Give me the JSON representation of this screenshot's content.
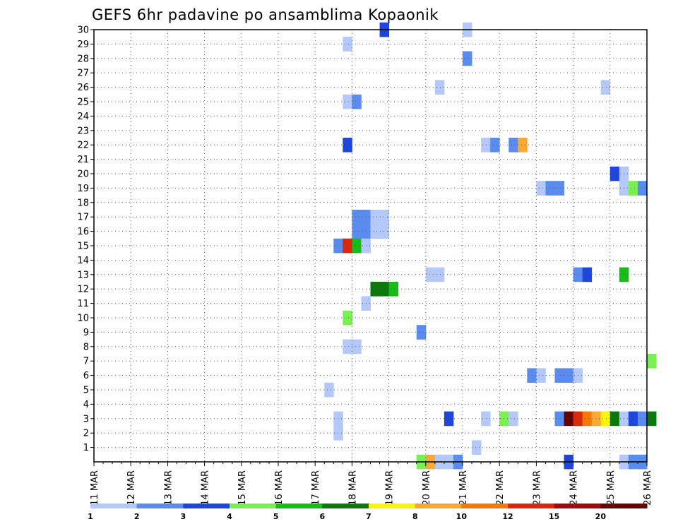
{
  "chart_data": {
    "type": "heatmap",
    "title": "GEFS 6hr padavine po ansamblima Kopaonik",
    "x_tick_labels": [
      "11 MAR",
      "12 MAR",
      "13 MAR",
      "14 MAR",
      "15 MAR",
      "16 MAR",
      "17 MAR",
      "18 MAR",
      "19 MAR",
      "20 MAR",
      "21 MAR",
      "22 MAR",
      "23 MAR",
      "24 MAR",
      "25 MAR",
      "26 MAR"
    ],
    "y_tick_labels": [
      "1",
      "2",
      "3",
      "4",
      "5",
      "6",
      "7",
      "8",
      "9",
      "10",
      "11",
      "12",
      "13",
      "14",
      "15",
      "16",
      "17",
      "18",
      "19",
      "20",
      "21",
      "22",
      "23",
      "24",
      "25",
      "26",
      "27",
      "28",
      "29",
      "30"
    ],
    "x_range_days": [
      0,
      15
    ],
    "y_range": [
      0,
      30
    ],
    "time_step_hours": 6,
    "legend": {
      "labels": [
        "1",
        "2",
        "3",
        "4",
        "5",
        "6",
        "7",
        "8",
        "10",
        "12",
        "15",
        "20"
      ],
      "colors": [
        "#b4c8fa",
        "#5a8cf0",
        "#1e46dc",
        "#78f050",
        "#14be14",
        "#0a780a",
        "#faf500",
        "#faaa32",
        "#fa7800",
        "#dc280a",
        "#a00a0a",
        "#640000"
      ]
    },
    "cells": [
      {
        "m": 30,
        "s": [
          31
        ],
        "c": 2
      },
      {
        "m": 30,
        "s": [
          40
        ],
        "c": 0
      },
      {
        "m": 29,
        "s": [
          27
        ],
        "c": 0
      },
      {
        "m": 28,
        "s": [
          40
        ],
        "c": 1
      },
      {
        "m": 26,
        "s": [
          37
        ],
        "c": 0
      },
      {
        "m": 26,
        "s": [
          55
        ],
        "c": 0
      },
      {
        "m": 25,
        "s": [
          27
        ],
        "c": 0
      },
      {
        "m": 25,
        "s": [
          28
        ],
        "c": 1
      },
      {
        "m": 22,
        "s": [
          27
        ],
        "c": 2
      },
      {
        "m": 22,
        "s": [
          42
        ],
        "c": 0
      },
      {
        "m": 22,
        "s": [
          43
        ],
        "c": 1
      },
      {
        "m": 22,
        "s": [
          45
        ],
        "c": 1
      },
      {
        "m": 22,
        "s": [
          46
        ],
        "c": 7
      },
      {
        "m": 20,
        "s": [
          56
        ],
        "c": 2
      },
      {
        "m": 20,
        "s": [
          57
        ],
        "c": 0
      },
      {
        "m": 19,
        "s": [
          48
        ],
        "c": 0
      },
      {
        "m": 19,
        "s": [
          49,
          50
        ],
        "c": 1
      },
      {
        "m": 19,
        "s": [
          57
        ],
        "c": 0
      },
      {
        "m": 19,
        "s": [
          58
        ],
        "c": 3
      },
      {
        "m": 19,
        "s": [
          59
        ],
        "c": 1
      },
      {
        "m": 17,
        "s": [
          28,
          29
        ],
        "c": 1
      },
      {
        "m": 17,
        "s": [
          30,
          31
        ],
        "c": 0
      },
      {
        "m": 16,
        "s": [
          28,
          29
        ],
        "c": 1
      },
      {
        "m": 16,
        "s": [
          30,
          31
        ],
        "c": 0
      },
      {
        "m": 15,
        "s": [
          26
        ],
        "c": 1
      },
      {
        "m": 15,
        "s": [
          27
        ],
        "c": 9
      },
      {
        "m": 15,
        "s": [
          28
        ],
        "c": 4
      },
      {
        "m": 15,
        "s": [
          29
        ],
        "c": 0
      },
      {
        "m": 13,
        "s": [
          36,
          37
        ],
        "c": 0
      },
      {
        "m": 13,
        "s": [
          52
        ],
        "c": 1
      },
      {
        "m": 13,
        "s": [
          53
        ],
        "c": 2
      },
      {
        "m": 13,
        "s": [
          57
        ],
        "c": 4
      },
      {
        "m": 12,
        "s": [
          30,
          31
        ],
        "c": 5
      },
      {
        "m": 12,
        "s": [
          32
        ],
        "c": 4
      },
      {
        "m": 11,
        "s": [
          29
        ],
        "c": 0
      },
      {
        "m": 10,
        "s": [
          27
        ],
        "c": 3
      },
      {
        "m": 9,
        "s": [
          35
        ],
        "c": 1
      },
      {
        "m": 8,
        "s": [
          27,
          28
        ],
        "c": 0
      },
      {
        "m": 7,
        "s": [
          60
        ],
        "c": 3
      },
      {
        "m": 6,
        "s": [
          47
        ],
        "c": 1
      },
      {
        "m": 6,
        "s": [
          48
        ],
        "c": 0
      },
      {
        "m": 6,
        "s": [
          50,
          51
        ],
        "c": 1
      },
      {
        "m": 6,
        "s": [
          52
        ],
        "c": 0
      },
      {
        "m": 5,
        "s": [
          25
        ],
        "c": 0
      },
      {
        "m": 3,
        "s": [
          26
        ],
        "c": 0
      },
      {
        "m": 3,
        "s": [
          38
        ],
        "c": 2
      },
      {
        "m": 3,
        "s": [
          42
        ],
        "c": 0
      },
      {
        "m": 3,
        "s": [
          44
        ],
        "c": 3
      },
      {
        "m": 3,
        "s": [
          45
        ],
        "c": 0
      },
      {
        "m": 3,
        "s": [
          50
        ],
        "c": 1
      },
      {
        "m": 3,
        "s": [
          51
        ],
        "c": 11
      },
      {
        "m": 3,
        "s": [
          52
        ],
        "c": 9
      },
      {
        "m": 3,
        "s": [
          53
        ],
        "c": 8
      },
      {
        "m": 3,
        "s": [
          54
        ],
        "c": 7
      },
      {
        "m": 3,
        "s": [
          55
        ],
        "c": 6
      },
      {
        "m": 3,
        "s": [
          56
        ],
        "c": 5
      },
      {
        "m": 3,
        "s": [
          57
        ],
        "c": 0
      },
      {
        "m": 3,
        "s": [
          58
        ],
        "c": 2
      },
      {
        "m": 3,
        "s": [
          59
        ],
        "c": 1
      },
      {
        "m": 3,
        "s": [
          60
        ],
        "c": 5
      },
      {
        "m": 2,
        "s": [
          26
        ],
        "c": 0
      },
      {
        "m": 1,
        "s": [
          41
        ],
        "c": 0
      },
      {
        "m": 0,
        "s": [
          35
        ],
        "c": 3
      },
      {
        "m": 0,
        "s": [
          36
        ],
        "c": 7
      },
      {
        "m": 0,
        "s": [
          37,
          38
        ],
        "c": 0
      },
      {
        "m": 0,
        "s": [
          39
        ],
        "c": 1
      },
      {
        "m": 0,
        "s": [
          51
        ],
        "c": 2
      },
      {
        "m": 0,
        "s": [
          57
        ],
        "c": 0
      },
      {
        "m": 0,
        "s": [
          58,
          59
        ],
        "c": 1
      }
    ]
  }
}
